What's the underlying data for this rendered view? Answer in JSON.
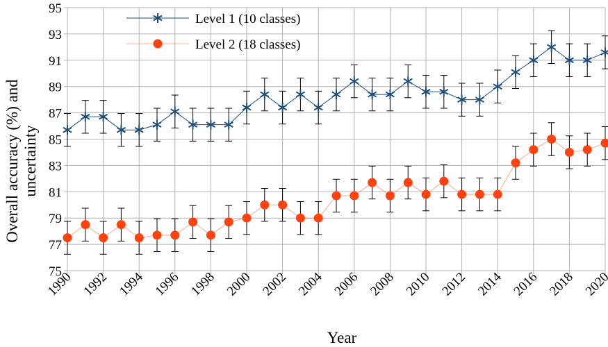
{
  "chart_data": {
    "type": "line",
    "title": "",
    "xlabel": "Year",
    "ylabel": "Overall accuracy (%) and uncertainty",
    "ylabel_lines": [
      "Overall accuracy (%) and",
      "uncertainty"
    ],
    "xlim": [
      1990,
      2020
    ],
    "ylim": [
      75,
      95
    ],
    "x_ticks": [
      "1990",
      "1992",
      "1994",
      "1996",
      "1998",
      "2000",
      "2002",
      "2004",
      "2006",
      "2008",
      "2010",
      "2012",
      "2014",
      "2016",
      "2018",
      "2020"
    ],
    "y_ticks": [
      "75",
      "77",
      "79",
      "81",
      "83",
      "85",
      "87",
      "89",
      "91",
      "93",
      "95"
    ],
    "grid": true,
    "legend_position": "top-center",
    "x": [
      1990,
      1991,
      1992,
      1993,
      1994,
      1995,
      1996,
      1997,
      1998,
      1999,
      2000,
      2001,
      2002,
      2003,
      2004,
      2005,
      2006,
      2007,
      2008,
      2009,
      2010,
      2011,
      2012,
      2013,
      2014,
      2015,
      2016,
      2017,
      2018,
      2019,
      2020
    ],
    "series": [
      {
        "name": "Level 1 (10 classes)",
        "marker": "star",
        "color": "#1f4e79",
        "values": [
          85.7,
          86.7,
          86.7,
          85.7,
          85.7,
          86.1,
          87.1,
          86.1,
          86.1,
          86.1,
          87.4,
          88.4,
          87.4,
          88.4,
          87.4,
          88.4,
          89.4,
          88.4,
          88.4,
          89.4,
          88.6,
          88.6,
          88.0,
          88.0,
          89.0,
          90.1,
          91.0,
          92.0,
          91.0,
          91.0,
          91.6
        ],
        "error": 1.25
      },
      {
        "name": "Level 2 (18 classes)",
        "marker": "circle",
        "color": "#ff420e",
        "values": [
          77.5,
          78.5,
          77.5,
          78.5,
          77.5,
          77.7,
          77.7,
          78.7,
          77.7,
          78.7,
          79.0,
          80.0,
          80.0,
          79.0,
          79.0,
          80.7,
          80.7,
          81.7,
          80.7,
          81.7,
          80.8,
          81.8,
          80.8,
          80.8,
          80.8,
          83.2,
          84.2,
          85.0,
          84.0,
          84.2,
          84.7
        ],
        "error": 1.25
      }
    ]
  }
}
